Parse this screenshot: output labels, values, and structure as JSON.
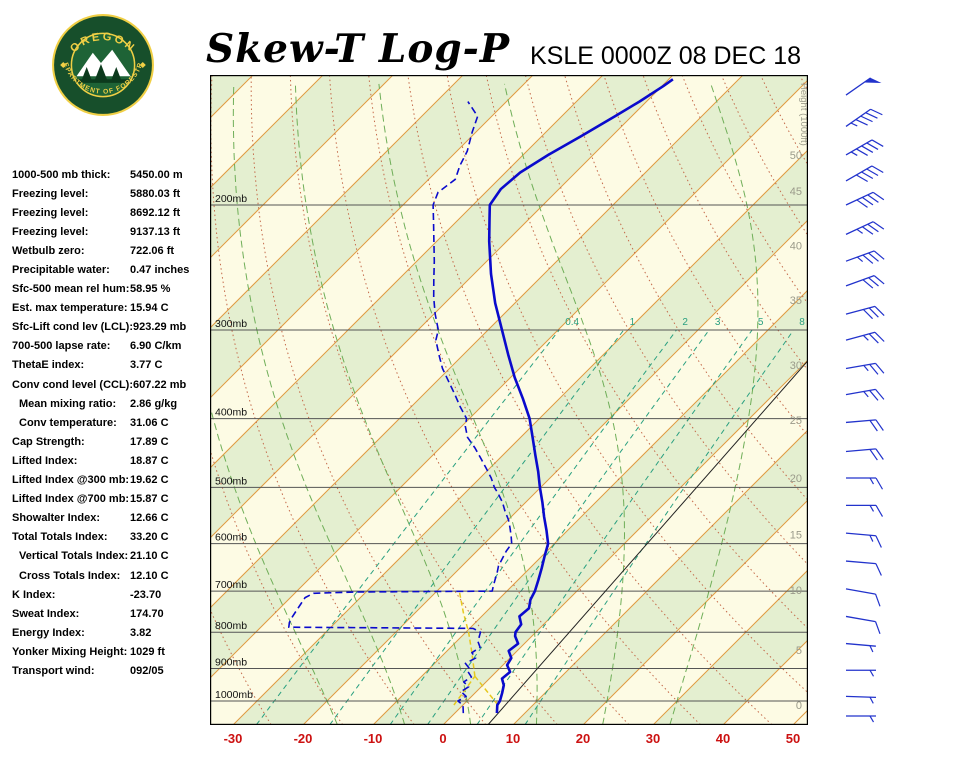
{
  "header": {
    "title": "Skew-T Log-P",
    "station_line": "KSLE 0000Z 08 DEC 18",
    "logo_top": "OREGON",
    "logo_bottom": "DEPARTMENT OF FORESTRY"
  },
  "indices": [
    {
      "label": "1000-500 mb thick:",
      "value": "5450.00 m"
    },
    {
      "label": "Freezing level:",
      "value": "5880.03 ft"
    },
    {
      "label": "Freezing level:",
      "value": "8692.12 ft"
    },
    {
      "label": "Freezing level:",
      "value": "9137.13 ft"
    },
    {
      "label": "Wetbulb zero:",
      "value": "722.06 ft"
    },
    {
      "label": "Precipitable water:",
      "value": "0.47 inches"
    },
    {
      "label": "Sfc-500 mean rel hum:",
      "value": "58.95 %"
    },
    {
      "label": "Est. max temperature:",
      "value": "15.94 C"
    },
    {
      "label": "Sfc-Lift cond lev (LCL):",
      "value": "923.29 mb"
    },
    {
      "label": "700-500 lapse rate:",
      "value": "6.90 C/km"
    },
    {
      "label": "ThetaE index:",
      "value": "3.77 C"
    },
    {
      "label": "Conv cond level (CCL):",
      "value": "607.22 mb"
    },
    {
      "label": "Mean mixing ratio:",
      "value": "2.86 g/kg",
      "indent": true
    },
    {
      "label": "Conv temperature:",
      "value": "31.06 C",
      "indent": true
    },
    {
      "label": "Cap Strength:",
      "value": "17.89 C"
    },
    {
      "label": "Lifted Index:",
      "value": "18.87 C"
    },
    {
      "label": "Lifted Index @300 mb:",
      "value": "19.62 C"
    },
    {
      "label": "Lifted Index @700 mb:",
      "value": "15.87 C"
    },
    {
      "label": "Showalter Index:",
      "value": "12.66 C"
    },
    {
      "label": "Total Totals Index:",
      "value": "33.20 C"
    },
    {
      "label": "Vertical Totals Index:",
      "value": "21.10 C",
      "indent": true
    },
    {
      "label": "Cross Totals Index:",
      "value": "12.10 C",
      "indent": true
    },
    {
      "label": "K Index:",
      "value": "-23.70"
    },
    {
      "label": "Sweat Index:",
      "value": "174.70"
    },
    {
      "label": "Energy Index:",
      "value": "3.82"
    },
    {
      "label": "Yonker Mixing Height:",
      "value": "1029 ft"
    },
    {
      "label": "Transport wind:",
      "value": "092/05"
    }
  ],
  "chart_data": {
    "type": "line",
    "subtype": "skew-t-log-p",
    "title": "Skew-T Log-P",
    "station": "KSLE",
    "valid_time": "0000Z 08 DEC 18",
    "x_axis": {
      "unit": "C",
      "ticks": [
        -30,
        -20,
        -10,
        0,
        10,
        20,
        30,
        40,
        50
      ],
      "tick_color": "#cc1111"
    },
    "y_axis": {
      "scale": "log",
      "unit": "mb",
      "levels": [
        200,
        300,
        400,
        500,
        600,
        700,
        800,
        900,
        1000
      ],
      "level_suffix": "mb",
      "top_mb": 131,
      "bottom_mb": 1081
    },
    "height_axis": {
      "label": "Height (1000ft)",
      "color": "#9a9a8a",
      "ticks": [
        {
          "label": "50",
          "p": 170
        },
        {
          "label": "45",
          "p": 191
        },
        {
          "label": "40",
          "p": 228
        },
        {
          "label": "35",
          "p": 272
        },
        {
          "label": "30",
          "p": 336
        },
        {
          "label": "25",
          "p": 402
        },
        {
          "label": "20",
          "p": 485
        },
        {
          "label": "15",
          "p": 583
        },
        {
          "label": "10",
          "p": 698
        },
        {
          "label": "5",
          "p": 847
        },
        {
          "label": "0",
          "p": 1013
        }
      ]
    },
    "mixing_ratio_lines": [
      0.4,
      1,
      2,
      3,
      5,
      8
    ],
    "grid": {
      "skew_deg": 45,
      "isotherms": {
        "from": -130,
        "to": 50,
        "step": 10,
        "color": "#e09a40"
      },
      "isobar_color": "#555555",
      "dry_adiabats": {
        "from": -40,
        "to": 150,
        "step": 10,
        "color": "#c46a4a"
      },
      "moist_adiabats": [
        -20,
        -10,
        0,
        10,
        20,
        30
      ],
      "moist_adiabat_color": "#6fae58",
      "mixing_ratio_color": "#2aa080",
      "band_colors": [
        "#fdfbe4",
        "#e4efd0"
      ]
    },
    "series": [
      {
        "name": "temperature",
        "style": "solid",
        "color": "#0a0acc",
        "width": 2.6,
        "points": [
          [
            1040,
            6.0
          ],
          [
            1013,
            4.9
          ],
          [
            1000,
            4.7
          ],
          [
            975,
            3.9
          ],
          [
            950,
            3.0
          ],
          [
            930,
            1.8
          ],
          [
            910,
            2.0
          ],
          [
            890,
            0.6
          ],
          [
            870,
            0.2
          ],
          [
            850,
            -1.2
          ],
          [
            830,
            -0.9
          ],
          [
            810,
            -2.4
          ],
          [
            800,
            -2.9
          ],
          [
            780,
            -3.2
          ],
          [
            760,
            -4.6
          ],
          [
            740,
            -4.4
          ],
          [
            720,
            -5.4
          ],
          [
            700,
            -6.0
          ],
          [
            675,
            -7.1
          ],
          [
            650,
            -8.3
          ],
          [
            625,
            -9.6
          ],
          [
            600,
            -10.9
          ],
          [
            575,
            -13.0
          ],
          [
            550,
            -15.3
          ],
          [
            525,
            -17.6
          ],
          [
            500,
            -20.1
          ],
          [
            475,
            -22.6
          ],
          [
            450,
            -25.4
          ],
          [
            425,
            -28.3
          ],
          [
            400,
            -31.4
          ],
          [
            375,
            -35.2
          ],
          [
            350,
            -39.4
          ],
          [
            325,
            -43.6
          ],
          [
            300,
            -48.0
          ],
          [
            275,
            -52.8
          ],
          [
            250,
            -57.6
          ],
          [
            225,
            -62.5
          ],
          [
            210,
            -65.5
          ],
          [
            200,
            -67.6
          ],
          [
            190,
            -68.3
          ],
          [
            180,
            -67.9
          ],
          [
            170,
            -66.4
          ],
          [
            160,
            -64.4
          ],
          [
            150,
            -62.4
          ],
          [
            143,
            -61.0
          ],
          [
            136,
            -59.8
          ],
          [
            133,
            -59.4
          ]
        ]
      },
      {
        "name": "dewpoint",
        "style": "dashed",
        "color": "#0a0acc",
        "width": 1.6,
        "points": [
          [
            1040,
            1.2
          ],
          [
            1013,
            0.0
          ],
          [
            1000,
            -1.3
          ],
          [
            985,
            -0.8
          ],
          [
            970,
            -2.2
          ],
          [
            955,
            -1.8
          ],
          [
            940,
            -3.2
          ],
          [
            925,
            -2.8
          ],
          [
            910,
            -4.0
          ],
          [
            900,
            -4.3
          ],
          [
            885,
            -5.6
          ],
          [
            870,
            -4.9
          ],
          [
            855,
            -6.2
          ],
          [
            840,
            -5.8
          ],
          [
            825,
            -6.9
          ],
          [
            810,
            -7.5
          ],
          [
            800,
            -7.9
          ],
          [
            790,
            -9.5
          ],
          [
            787,
            -36.0
          ],
          [
            775,
            -36.6
          ],
          [
            760,
            -37.0
          ],
          [
            745,
            -37.3
          ],
          [
            730,
            -37.6
          ],
          [
            715,
            -37.9
          ],
          [
            705,
            -37.3
          ],
          [
            702,
            -31.5
          ],
          [
            700,
            -12.1
          ],
          [
            690,
            -12.6
          ],
          [
            675,
            -13.3
          ],
          [
            660,
            -14.0
          ],
          [
            645,
            -14.8
          ],
          [
            630,
            -15.3
          ],
          [
            615,
            -15.8
          ],
          [
            600,
            -16.1
          ],
          [
            585,
            -17.3
          ],
          [
            570,
            -18.6
          ],
          [
            555,
            -20.0
          ],
          [
            540,
            -21.7
          ],
          [
            525,
            -23.3
          ],
          [
            510,
            -25.2
          ],
          [
            500,
            -26.6
          ],
          [
            485,
            -28.4
          ],
          [
            470,
            -30.5
          ],
          [
            455,
            -32.7
          ],
          [
            440,
            -35.0
          ],
          [
            425,
            -37.6
          ],
          [
            410,
            -39.5
          ],
          [
            400,
            -40.4
          ],
          [
            385,
            -43.0
          ],
          [
            370,
            -45.5
          ],
          [
            355,
            -48.2
          ],
          [
            340,
            -51.0
          ],
          [
            325,
            -53.5
          ],
          [
            310,
            -56.0
          ],
          [
            300,
            -57.1
          ],
          [
            285,
            -59.8
          ],
          [
            270,
            -62.4
          ],
          [
            255,
            -64.9
          ],
          [
            240,
            -67.5
          ],
          [
            225,
            -70.4
          ],
          [
            210,
            -73.5
          ],
          [
            200,
            -75.7
          ],
          [
            192,
            -76.8
          ],
          [
            184,
            -76.2
          ],
          [
            176,
            -77.5
          ],
          [
            168,
            -78.5
          ],
          [
            158,
            -80.5
          ],
          [
            150,
            -82.0
          ],
          [
            143,
            -85.5
          ]
        ]
      }
    ],
    "parcel_trace": {
      "color": "#e6c81e",
      "segments": [
        [
          [
            1013,
            5.0
          ],
          [
            923,
            -2.4
          ]
        ],
        [
          [
            1013,
            -1.3
          ],
          [
            923,
            -2.4
          ]
        ],
        [
          [
            923,
            -2.4
          ],
          [
            850,
            -6.5
          ],
          [
            800,
            -9.6
          ],
          [
            750,
            -13.2
          ],
          [
            700,
            -16.8
          ]
        ]
      ]
    },
    "reference_line": {
      "color": "#222222",
      "points": [
        [
          1081,
          6.4
        ],
        [
          332,
          0.1
        ]
      ]
    },
    "wind_barbs": {
      "color": "#2233cc",
      "unit": "kt",
      "barbs": [
        {
          "p": 140,
          "dir": 55,
          "spd": 50
        },
        {
          "p": 155,
          "dir": 55,
          "spd": 45
        },
        {
          "p": 170,
          "dir": 60,
          "spd": 45
        },
        {
          "p": 185,
          "dir": 60,
          "spd": 40
        },
        {
          "p": 200,
          "dir": 65,
          "spd": 40
        },
        {
          "p": 220,
          "dir": 65,
          "spd": 35
        },
        {
          "p": 240,
          "dir": 70,
          "spd": 35
        },
        {
          "p": 260,
          "dir": 70,
          "spd": 30
        },
        {
          "p": 285,
          "dir": 75,
          "spd": 30
        },
        {
          "p": 310,
          "dir": 75,
          "spd": 25
        },
        {
          "p": 340,
          "dir": 80,
          "spd": 25
        },
        {
          "p": 370,
          "dir": 80,
          "spd": 25
        },
        {
          "p": 405,
          "dir": 85,
          "spd": 20
        },
        {
          "p": 445,
          "dir": 85,
          "spd": 20
        },
        {
          "p": 485,
          "dir": 90,
          "spd": 15
        },
        {
          "p": 530,
          "dir": 90,
          "spd": 15
        },
        {
          "p": 580,
          "dir": 95,
          "spd": 15
        },
        {
          "p": 635,
          "dir": 95,
          "spd": 10
        },
        {
          "p": 695,
          "dir": 100,
          "spd": 10
        },
        {
          "p": 760,
          "dir": 100,
          "spd": 10
        },
        {
          "p": 830,
          "dir": 95,
          "spd": 5
        },
        {
          "p": 905,
          "dir": 90,
          "spd": 5
        },
        {
          "p": 985,
          "dir": 92,
          "spd": 5
        },
        {
          "p": 1050,
          "dir": 90,
          "spd": 5
        }
      ]
    }
  }
}
